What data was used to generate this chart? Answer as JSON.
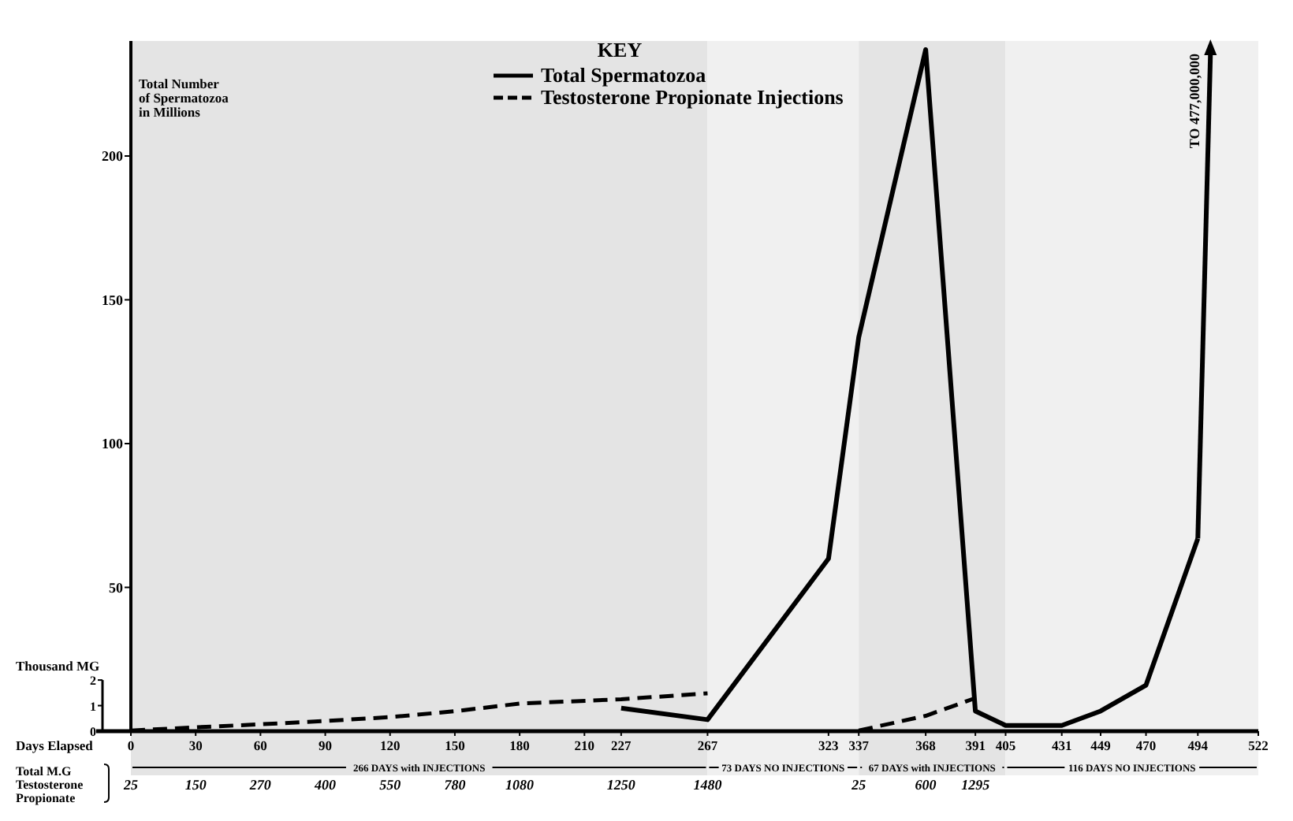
{
  "chart_data": {
    "type": "line",
    "ylabel": "Total Number of Spermatozoa in Millions",
    "y2label": "Thousand MG",
    "xlabel": "Days Elapsed",
    "legend_title": "KEY",
    "legend": "top",
    "xlim": [
      0,
      522
    ],
    "xticks": [
      0,
      30,
      60,
      90,
      120,
      150,
      180,
      210,
      227,
      267,
      323,
      337,
      368,
      391,
      405,
      431,
      449,
      470,
      494,
      522
    ],
    "ylim": [
      0,
      240
    ],
    "yticks": [
      50,
      100,
      150,
      200
    ],
    "y2lim": [
      0,
      27
    ],
    "y2ticks": [
      0,
      1,
      2
    ],
    "series": [
      {
        "name": "Total Spermatozoa",
        "color": "#000000",
        "line_style": "solid",
        "x": [
          227,
          267,
          323,
          337,
          368,
          391,
          405,
          431,
          449,
          470,
          494
        ],
        "values": [
          8,
          4,
          60,
          137,
          237,
          7,
          2,
          2,
          7,
          16,
          67
        ]
      },
      {
        "name": "Testosterone Propionate Injections",
        "color": "#000000",
        "line_style": "dashed",
        "axis": "y2",
        "x": [
          0,
          30,
          60,
          90,
          120,
          150,
          180,
          227,
          267,
          300,
          337,
          368,
          391
        ],
        "values": [
          0.025,
          0.15,
          0.27,
          0.4,
          0.55,
          0.78,
          1.08,
          1.25,
          1.48,
          null,
          0.025,
          0.6,
          1.295
        ]
      }
    ],
    "bands": [
      {
        "axis": "x",
        "from": 0,
        "to": 267,
        "label": "266 DAYS with INJECTIONS",
        "color": "#e4e4e4"
      },
      {
        "axis": "x",
        "from": 267,
        "to": 337,
        "label": "73 DAYS NO INJECTIONS",
        "color": "#f0f0f0"
      },
      {
        "axis": "x",
        "from": 337,
        "to": 405,
        "label": "67 DAYS with INJECTIONS",
        "color": "#e4e4e4"
      },
      {
        "axis": "x",
        "from": 405,
        "to": 522,
        "label": "116 DAYS NO INJECTIONS",
        "color": "#f0f0f0"
      }
    ],
    "annotations": [
      "TO 477,000,000",
      "Total M.G Testosterone Propionate",
      "25",
      "150",
      "270",
      "400",
      "550",
      "780",
      "1080",
      "1250",
      "1480",
      "25",
      "600",
      "1295"
    ]
  }
}
